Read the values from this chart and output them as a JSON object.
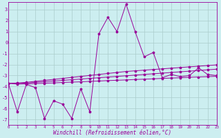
{
  "xlabel": "Windchill (Refroidissement éolien,°C)",
  "bg_color": "#cceef0",
  "grid_color": "#aacccc",
  "line_color": "#990099",
  "xlim": [
    0,
    23
  ],
  "ylim": [
    -7.5,
    3.7
  ],
  "xticks": [
    0,
    1,
    2,
    3,
    4,
    5,
    6,
    7,
    8,
    9,
    10,
    11,
    12,
    13,
    14,
    15,
    16,
    17,
    18,
    19,
    20,
    21,
    22,
    23
  ],
  "yticks": [
    -7,
    -6,
    -5,
    -4,
    -3,
    -2,
    -1,
    0,
    1,
    2,
    3
  ],
  "series": [
    {
      "x": [
        0,
        1,
        2,
        3,
        4,
        5,
        6,
        7,
        8,
        9,
        10,
        11,
        12,
        13,
        14,
        15,
        16,
        17,
        18,
        19,
        20,
        21,
        22,
        23
      ],
      "y": [
        -3.7,
        -6.3,
        -3.8,
        -4.1,
        -6.9,
        -5.3,
        -5.6,
        -6.9,
        -4.2,
        -6.3,
        0.8,
        2.3,
        1.0,
        3.5,
        1.0,
        -1.3,
        -0.9,
        -3.2,
        -2.9,
        -3.1,
        -3.0,
        -2.3,
        -2.9,
        -3.0
      ]
    },
    {
      "x": [
        0,
        1,
        2,
        3,
        4,
        5,
        6,
        7,
        8,
        9,
        10,
        11,
        12,
        13,
        14,
        15,
        16,
        17,
        18,
        19,
        20,
        21,
        22,
        23
      ],
      "y": [
        -3.7,
        -3.78,
        -3.76,
        -3.73,
        -3.7,
        -3.67,
        -3.63,
        -3.6,
        -3.57,
        -3.53,
        -3.5,
        -3.46,
        -3.43,
        -3.4,
        -3.36,
        -3.33,
        -3.3,
        -3.26,
        -3.23,
        -3.2,
        -3.16,
        -3.13,
        -3.1,
        -3.07
      ]
    },
    {
      "x": [
        0,
        1,
        2,
        3,
        4,
        5,
        6,
        7,
        8,
        9,
        10,
        11,
        12,
        13,
        14,
        15,
        16,
        17,
        18,
        19,
        20,
        21,
        22,
        23
      ],
      "y": [
        -3.7,
        -3.72,
        -3.68,
        -3.62,
        -3.56,
        -3.5,
        -3.44,
        -3.38,
        -3.32,
        -3.26,
        -3.2,
        -3.14,
        -3.08,
        -3.02,
        -2.96,
        -2.9,
        -2.84,
        -2.78,
        -2.72,
        -2.66,
        -2.6,
        -2.54,
        -2.48,
        -2.42
      ]
    },
    {
      "x": [
        0,
        1,
        2,
        3,
        4,
        5,
        6,
        7,
        8,
        9,
        10,
        11,
        12,
        13,
        14,
        15,
        16,
        17,
        18,
        19,
        20,
        21,
        22,
        23
      ],
      "y": [
        -3.7,
        -3.68,
        -3.62,
        -3.53,
        -3.44,
        -3.35,
        -3.26,
        -3.17,
        -3.08,
        -2.99,
        -2.9,
        -2.81,
        -2.72,
        -2.63,
        -2.57,
        -2.51,
        -2.45,
        -2.39,
        -2.33,
        -2.27,
        -2.21,
        -2.15,
        -2.09,
        -2.03
      ]
    }
  ]
}
